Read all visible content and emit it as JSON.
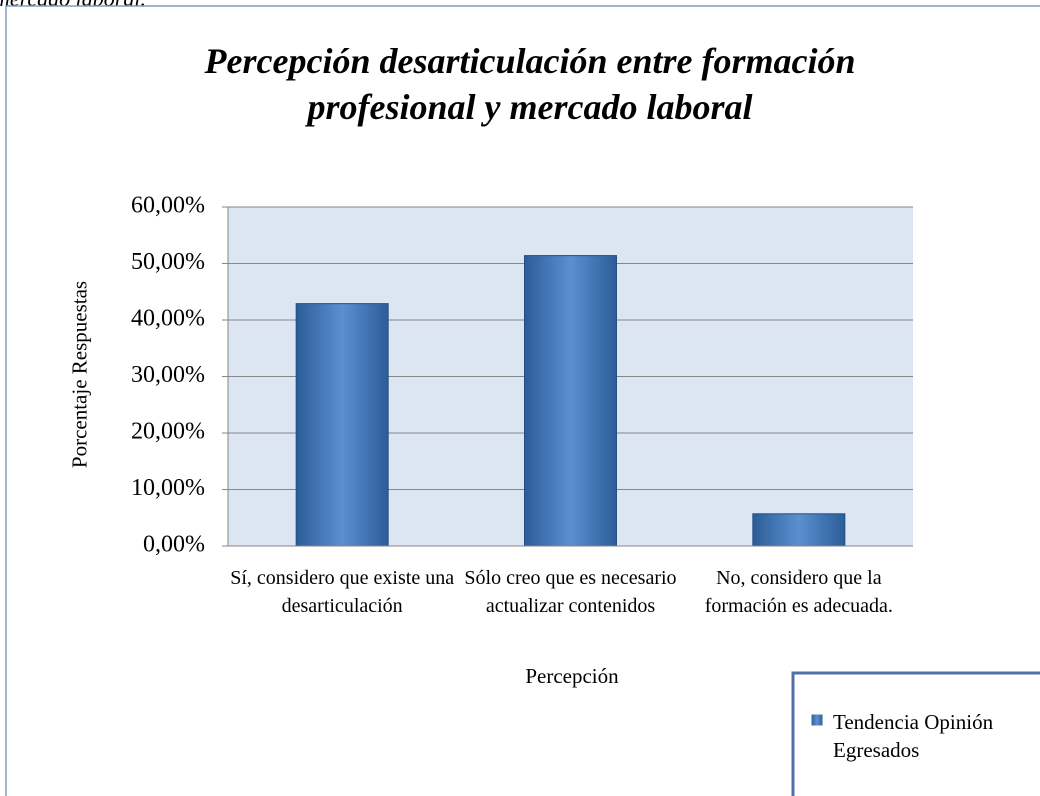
{
  "caption": "mercado laboral.",
  "chart_data": {
    "type": "bar",
    "title": "Percepción desarticulación entre formación profesional y mercado laboral",
    "x_label": "Percepción",
    "y_label": "Porcentaje Respuestas",
    "categories": [
      "Sí, considero que existe una desarticulación",
      "Sólo creo que es necesario actualizar contenidos",
      "No, considero que la formación es adecuada."
    ],
    "series": [
      {
        "name": "Tendencia Opinión Egresados",
        "color": "#4f81bd",
        "values": [
          42.9,
          51.4,
          5.7
        ]
      }
    ],
    "ylim": [
      0,
      60
    ],
    "yticks": [
      {
        "value": 0,
        "label": "0,00%"
      },
      {
        "value": 10,
        "label": "10,00%"
      },
      {
        "value": 20,
        "label": "20,00%"
      },
      {
        "value": 30,
        "label": "30,00%"
      },
      {
        "value": 40,
        "label": "40,00%"
      },
      {
        "value": 50,
        "label": "50,00%"
      },
      {
        "value": 60,
        "label": "60,00%"
      }
    ],
    "grid": true,
    "legend": "bottom-right"
  }
}
